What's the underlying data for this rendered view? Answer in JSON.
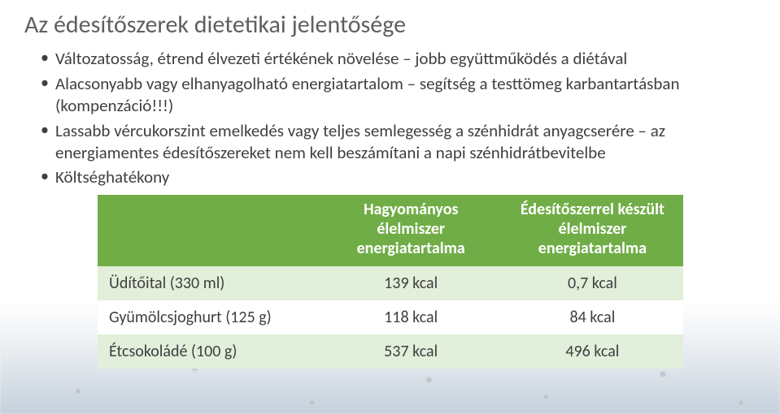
{
  "title": "Az édesítőszerek dietetikai jelentősége",
  "bullets": [
    "Változatosság, étrend élvezeti értékének növelése – jobb együttműködés a diétával",
    "Alacsonyabb vagy elhanyagolható energiatartalom – segítség a testtömeg karbantartásban (kompenzáció!!!)",
    "Lassabb vércukorszint emelkedés vagy teljes semlegesség a szénhidrát anyagcserére – az energiamentes édesítőszereket nem kell beszámítani a napi szénhidrátbevitelbe",
    "Költséghatékony"
  ],
  "table": {
    "columns": [
      "",
      "Hagyományos élelmiszer energiatartalma",
      "Édesítőszerrel készült élelmiszer energiatartalma"
    ],
    "rows": [
      [
        "Üdítőital (330 ml)",
        "139 kcal",
        "0,7 kcal"
      ],
      [
        "Gyümölcsjoghurt (125 g)",
        "118 kcal",
        "84 kcal"
      ],
      [
        "Étcsokoládé (100 g)",
        "537 kcal",
        "496 kcal"
      ]
    ],
    "style": {
      "header_bg": "#70ad47",
      "header_text": "#ffffff",
      "band_a_bg": "#e2efda",
      "band_b_bg": "#ffffff",
      "row_text": "#3f3f3f",
      "header_fontsize": 20,
      "cell_fontsize": 20,
      "col_widths_pct": [
        38,
        31,
        31
      ]
    }
  },
  "colors": {
    "title": "#5f5f5f",
    "body_text": "#3f3f3f",
    "background": "#ffffff"
  }
}
